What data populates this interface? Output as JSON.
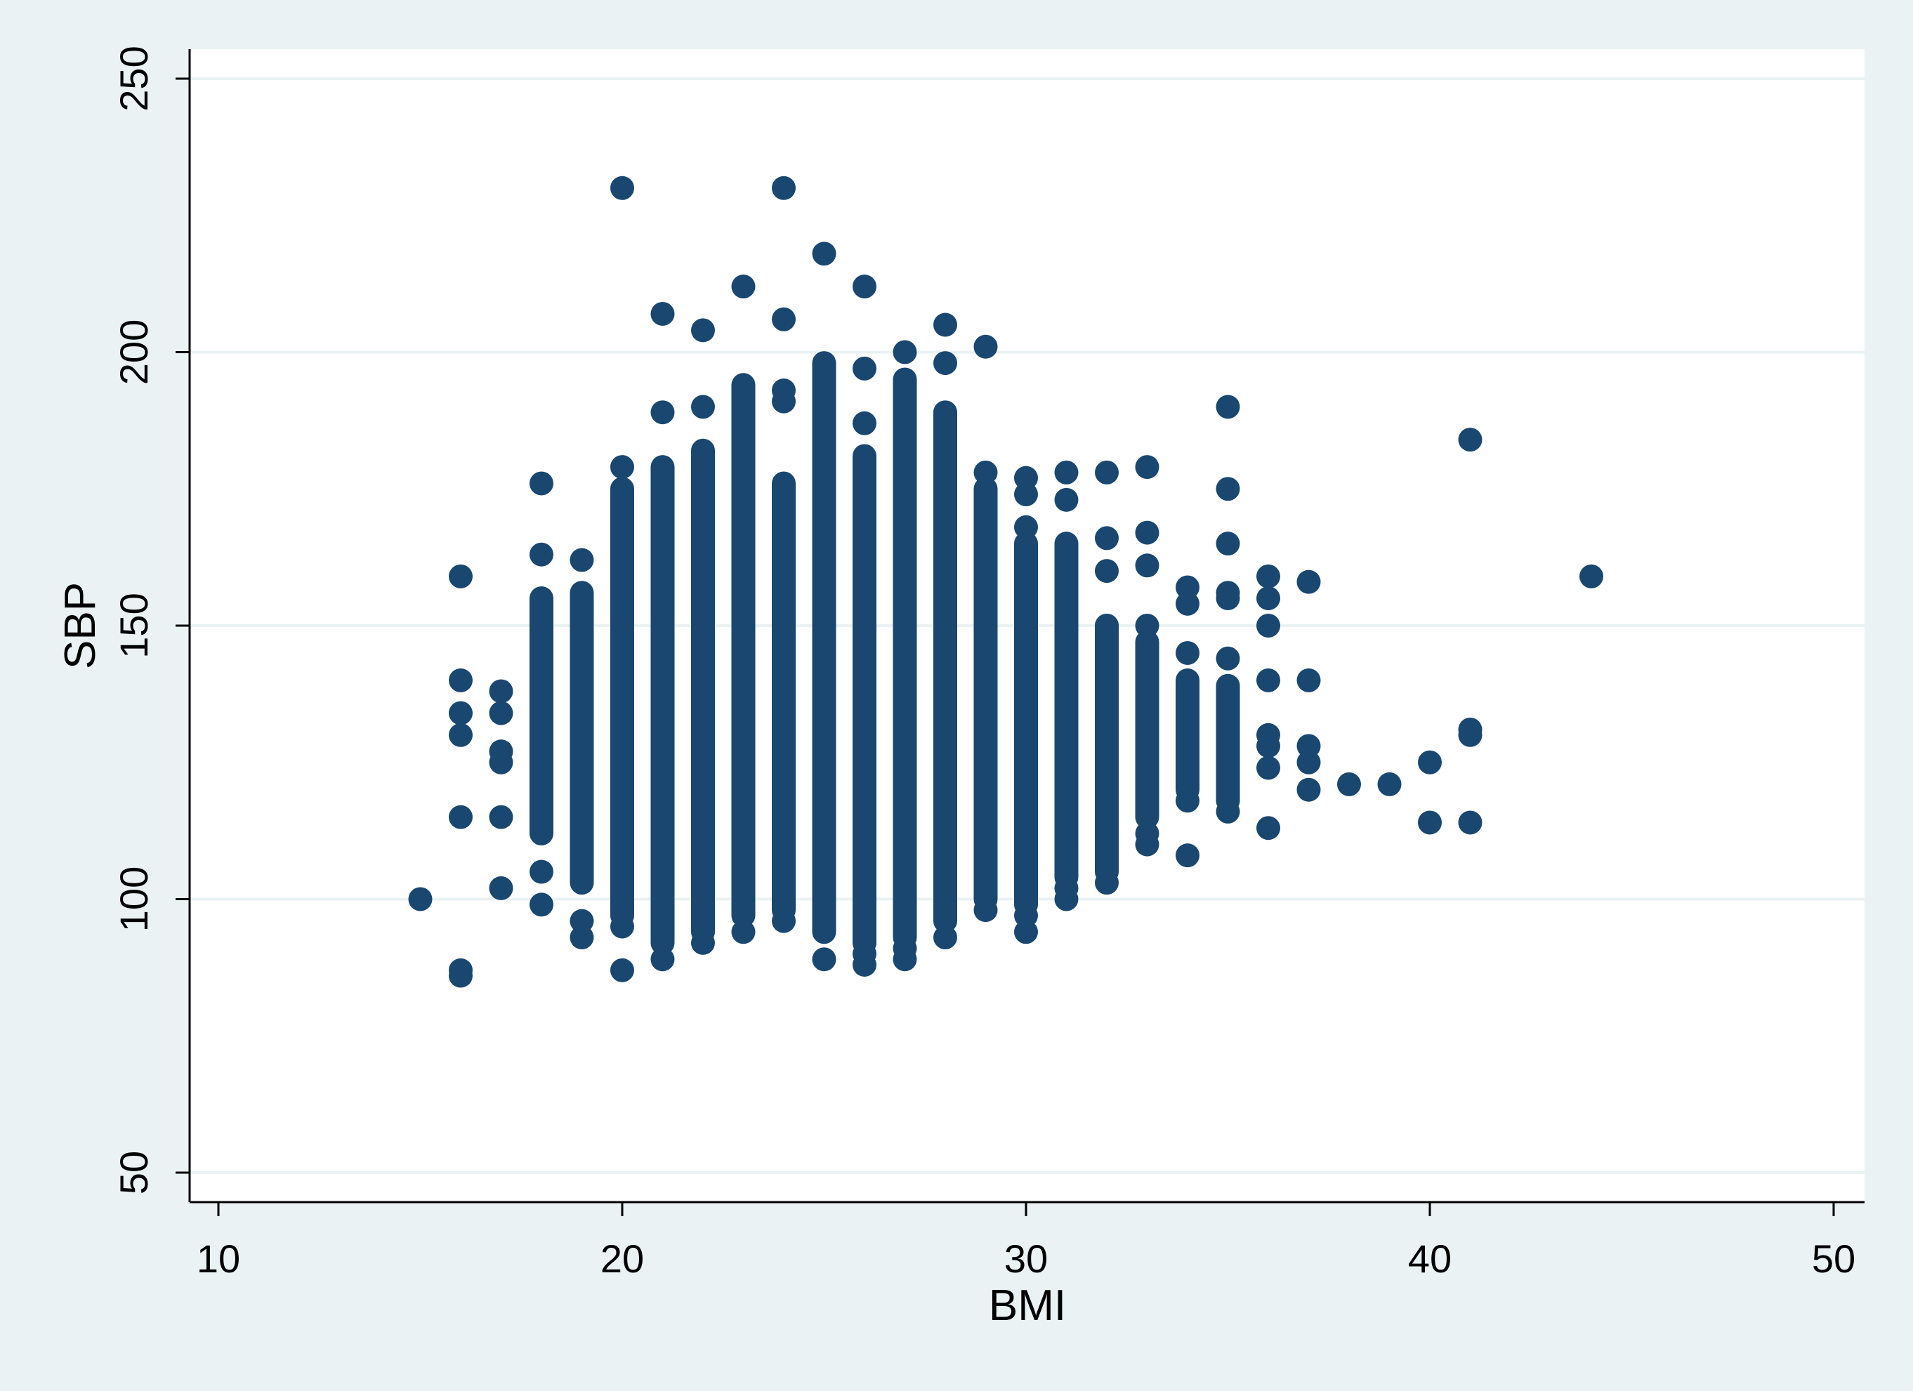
{
  "chart_data": {
    "type": "scatter",
    "xlabel": "BMI",
    "ylabel": "SBP",
    "xlim": [
      10,
      50
    ],
    "ylim": [
      50,
      250
    ],
    "xticks": [
      10,
      20,
      30,
      40,
      50
    ],
    "yticks": [
      50,
      100,
      150,
      200,
      250
    ],
    "grid": "horizontal",
    "legend": "none",
    "colors": {
      "point": "#1a476f",
      "background": "#eaf2f3",
      "plot": "#ffffff",
      "grid": "#eaf2f3"
    },
    "series": [
      {
        "values": [
          [
            15,
            100
          ],
          [
            16,
            86
          ],
          [
            16,
            87
          ],
          [
            16,
            115
          ],
          [
            16,
            130
          ],
          [
            16,
            134
          ],
          [
            16,
            140
          ],
          [
            16,
            159
          ],
          [
            17,
            102
          ],
          [
            17,
            115
          ],
          [
            17,
            125
          ],
          [
            17,
            127
          ],
          [
            17,
            134
          ],
          [
            17,
            138
          ],
          [
            18,
            99
          ],
          [
            18,
            105
          ],
          [
            18,
            163
          ],
          [
            18,
            176
          ],
          [
            19,
            93
          ],
          [
            19,
            96
          ],
          [
            19,
            162
          ],
          [
            20,
            87
          ],
          [
            20,
            95
          ],
          [
            20,
            230
          ],
          [
            20,
            179
          ],
          [
            21,
            89
          ],
          [
            21,
            189
          ],
          [
            21,
            207
          ],
          [
            22,
            92
          ],
          [
            22,
            190
          ],
          [
            22,
            204
          ],
          [
            23,
            94
          ],
          [
            23,
            212
          ],
          [
            24,
            96
          ],
          [
            24,
            191
          ],
          [
            24,
            193
          ],
          [
            24,
            206
          ],
          [
            24,
            230
          ],
          [
            25,
            89
          ],
          [
            25,
            218
          ],
          [
            26,
            88
          ],
          [
            26,
            90
          ],
          [
            26,
            187
          ],
          [
            26,
            197
          ],
          [
            26,
            212
          ],
          [
            27,
            89
          ],
          [
            27,
            91
          ],
          [
            27,
            200
          ],
          [
            28,
            93
          ],
          [
            28,
            198
          ],
          [
            28,
            205
          ],
          [
            29,
            98
          ],
          [
            29,
            178
          ],
          [
            29,
            201
          ],
          [
            30,
            94
          ],
          [
            30,
            97
          ],
          [
            30,
            168
          ],
          [
            30,
            174
          ],
          [
            30,
            177
          ],
          [
            31,
            100
          ],
          [
            31,
            102
          ],
          [
            31,
            107
          ],
          [
            31,
            173
          ],
          [
            31,
            178
          ],
          [
            32,
            103
          ],
          [
            32,
            106
          ],
          [
            32,
            150
          ],
          [
            32,
            160
          ],
          [
            32,
            166
          ],
          [
            32,
            178
          ],
          [
            33,
            110
          ],
          [
            33,
            112
          ],
          [
            33,
            150
          ],
          [
            33,
            161
          ],
          [
            33,
            167
          ],
          [
            33,
            179
          ],
          [
            34,
            108
          ],
          [
            34,
            118
          ],
          [
            34,
            145
          ],
          [
            34,
            154
          ],
          [
            34,
            157
          ],
          [
            35,
            116
          ],
          [
            35,
            144
          ],
          [
            35,
            155
          ],
          [
            35,
            156
          ],
          [
            35,
            165
          ],
          [
            35,
            175
          ],
          [
            35,
            190
          ],
          [
            36,
            113
          ],
          [
            36,
            124
          ],
          [
            36,
            128
          ],
          [
            36,
            130
          ],
          [
            36,
            140
          ],
          [
            36,
            150
          ],
          [
            36,
            155
          ],
          [
            36,
            159
          ],
          [
            37,
            120
          ],
          [
            37,
            125
          ],
          [
            37,
            128
          ],
          [
            37,
            140
          ],
          [
            37,
            158
          ],
          [
            38,
            121
          ],
          [
            39,
            121
          ],
          [
            40,
            114
          ],
          [
            40,
            125
          ],
          [
            41,
            114
          ],
          [
            41,
            130
          ],
          [
            41,
            131
          ],
          [
            41,
            184
          ],
          [
            44,
            159
          ]
        ],
        "columns": [
          [
            18,
            112,
            155
          ],
          [
            19,
            103,
            156
          ],
          [
            20,
            97,
            175
          ],
          [
            21,
            92,
            179
          ],
          [
            22,
            94,
            182
          ],
          [
            23,
            97,
            194
          ],
          [
            24,
            98,
            176
          ],
          [
            25,
            94,
            198
          ],
          [
            26,
            92,
            181
          ],
          [
            27,
            93,
            195
          ],
          [
            28,
            96,
            189
          ],
          [
            29,
            100,
            175
          ],
          [
            30,
            99,
            165
          ],
          [
            31,
            104,
            165
          ],
          [
            32,
            105,
            150
          ],
          [
            33,
            115,
            147
          ],
          [
            34,
            120,
            140
          ],
          [
            35,
            118,
            139
          ]
        ]
      }
    ]
  }
}
